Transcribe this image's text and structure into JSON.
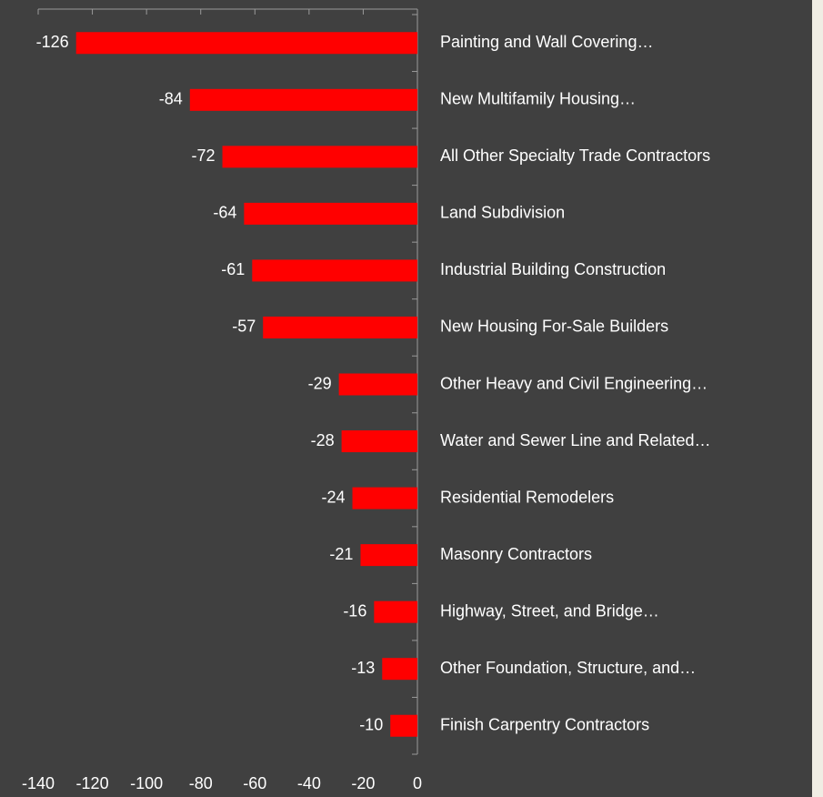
{
  "chart_data": {
    "type": "bar",
    "orientation": "horizontal",
    "color": "#ff0000",
    "categories": [
      "Painting and Wall Covering…",
      "New Multifamily Housing…",
      "All Other Specialty Trade Contractors",
      "Land Subdivision",
      "Industrial Building Construction",
      "New Housing For-Sale Builders",
      "Other Heavy and Civil Engineering…",
      "Water and Sewer Line and Related…",
      "Residential Remodelers",
      "Masonry Contractors",
      "Highway, Street, and Bridge…",
      "Other Foundation, Structure, and…",
      "Finish Carpentry Contractors"
    ],
    "values": [
      -126,
      -84,
      -72,
      -64,
      -61,
      -57,
      -29,
      -28,
      -24,
      -21,
      -16,
      -13,
      -10
    ],
    "xlim": [
      -140,
      0
    ],
    "xticks": [
      -140,
      -120,
      -100,
      -80,
      -60,
      -40,
      -20,
      0
    ]
  }
}
